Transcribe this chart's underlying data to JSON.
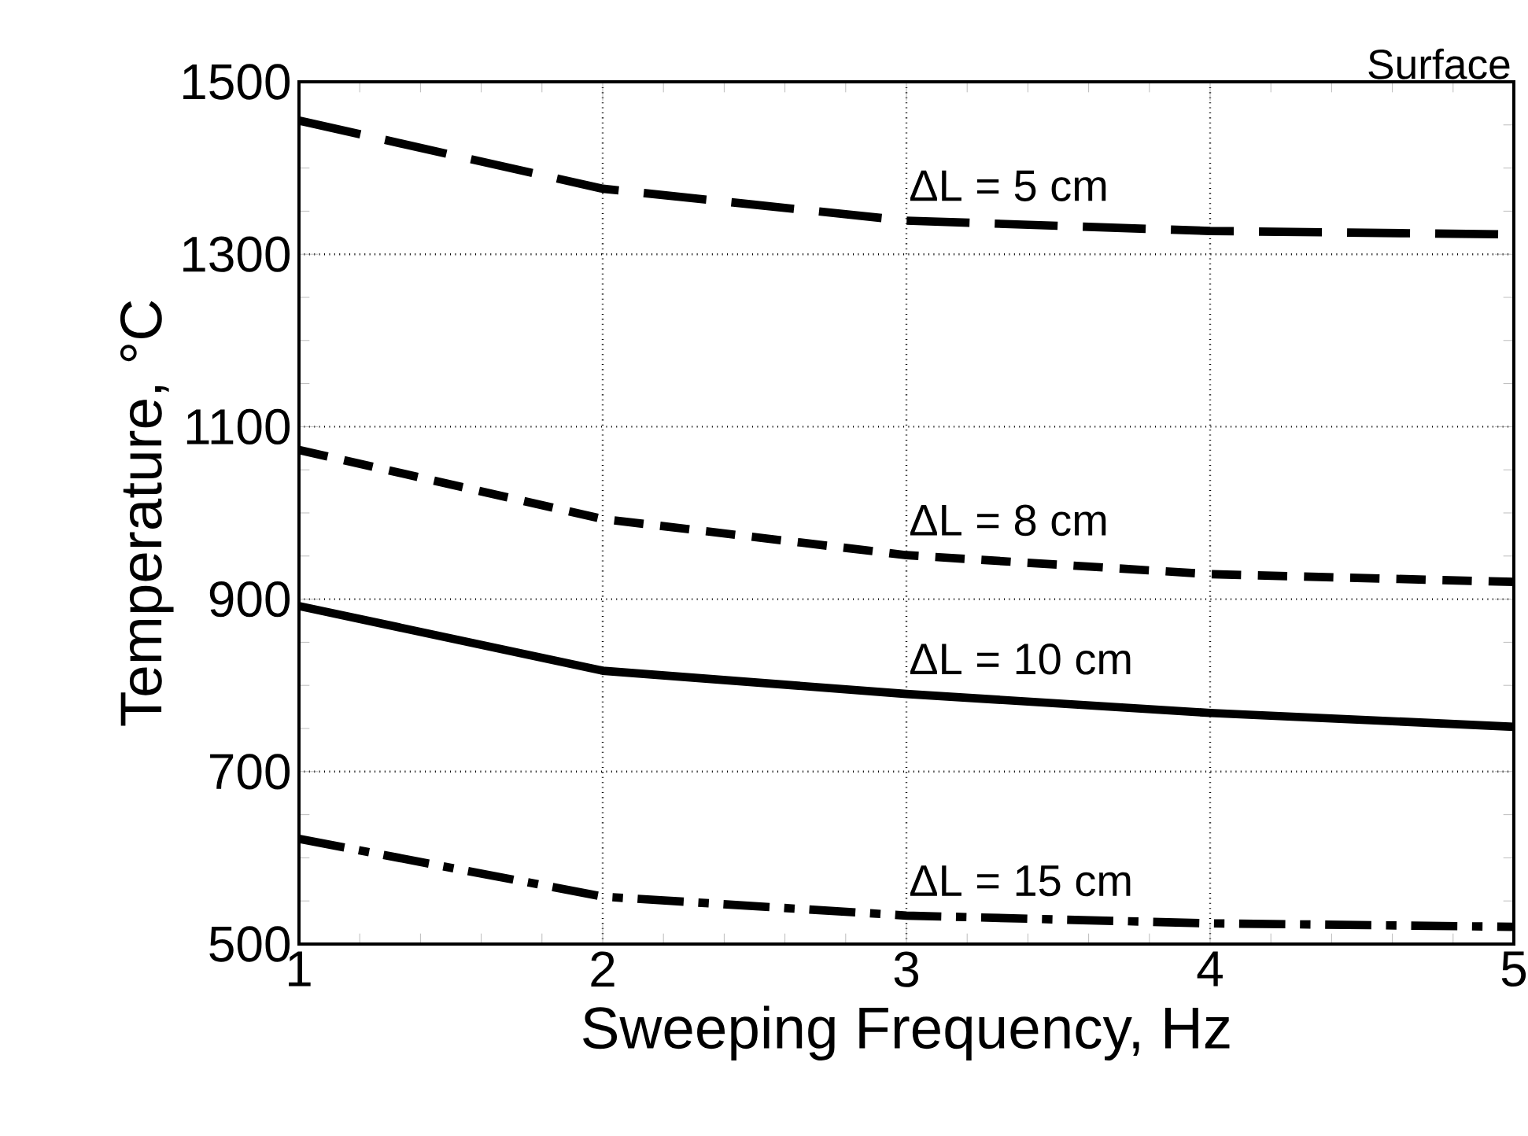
{
  "chart_data": {
    "type": "line",
    "xlabel": "Sweeping Frequency,   Hz",
    "ylabel": "Temperature,  °C",
    "x": [
      1,
      2,
      3,
      4,
      5
    ],
    "series": [
      {
        "name": "ΔL = 5 cm",
        "color": "#000000",
        "line_style": "longdash",
        "values": [
          1455,
          1376,
          1339,
          1327,
          1323
        ]
      },
      {
        "name": "ΔL = 8 cm",
        "color": "#000000",
        "line_style": "dashed",
        "values": [
          1073,
          993,
          951,
          929,
          920
        ]
      },
      {
        "name": "ΔL = 10 cm",
        "color": "#000000",
        "line_style": "solid",
        "values": [
          892,
          817,
          790,
          768,
          752
        ]
      },
      {
        "name": "ΔL = 15 cm",
        "color": "#000000",
        "line_style": "dashdot",
        "values": [
          622,
          555,
          533,
          524,
          520
        ]
      }
    ],
    "xlim": [
      1,
      5
    ],
    "ylim": [
      500,
      1500
    ],
    "xticks": [
      1,
      2,
      3,
      4,
      5
    ],
    "yticks": [
      500,
      700,
      900,
      1100,
      1300,
      1500
    ],
    "grid": true,
    "marker": "none",
    "annotations": [
      "Surface"
    ]
  }
}
